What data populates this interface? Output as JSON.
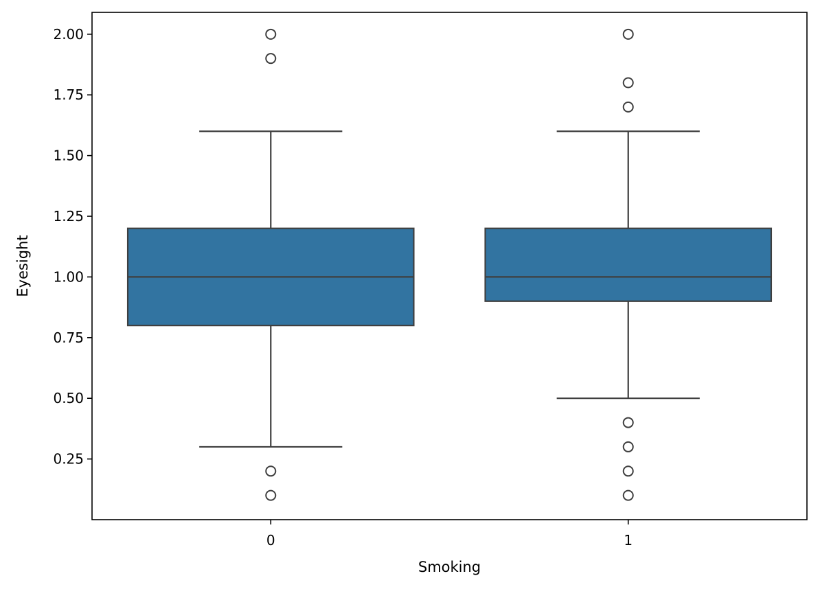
{
  "chart_data": {
    "type": "box",
    "xlabel": "Smoking",
    "ylabel": "Eyesight",
    "categories": [
      "0",
      "1"
    ],
    "ylim": [
      0.0,
      2.09
    ],
    "yticks": [
      0.25,
      0.5,
      0.75,
      1.0,
      1.25,
      1.5,
      1.75,
      2.0
    ],
    "ytick_labels": [
      "0.25",
      "0.50",
      "0.75",
      "1.00",
      "1.25",
      "1.50",
      "1.75",
      "2.00"
    ],
    "grid": false,
    "colors": {
      "box_fill": "#3274a1",
      "line": "#3f3f3f"
    },
    "boxes": [
      {
        "category": "0",
        "whisker_low": 0.3,
        "q1": 0.8,
        "median": 1.0,
        "q3": 1.2,
        "whisker_high": 1.6,
        "outliers": [
          0.1,
          0.2,
          1.9,
          2.0
        ]
      },
      {
        "category": "1",
        "whisker_low": 0.5,
        "q1": 0.9,
        "median": 1.0,
        "q3": 1.2,
        "whisker_high": 1.6,
        "outliers": [
          0.1,
          0.2,
          0.3,
          0.4,
          1.7,
          1.8,
          2.0
        ]
      }
    ]
  }
}
